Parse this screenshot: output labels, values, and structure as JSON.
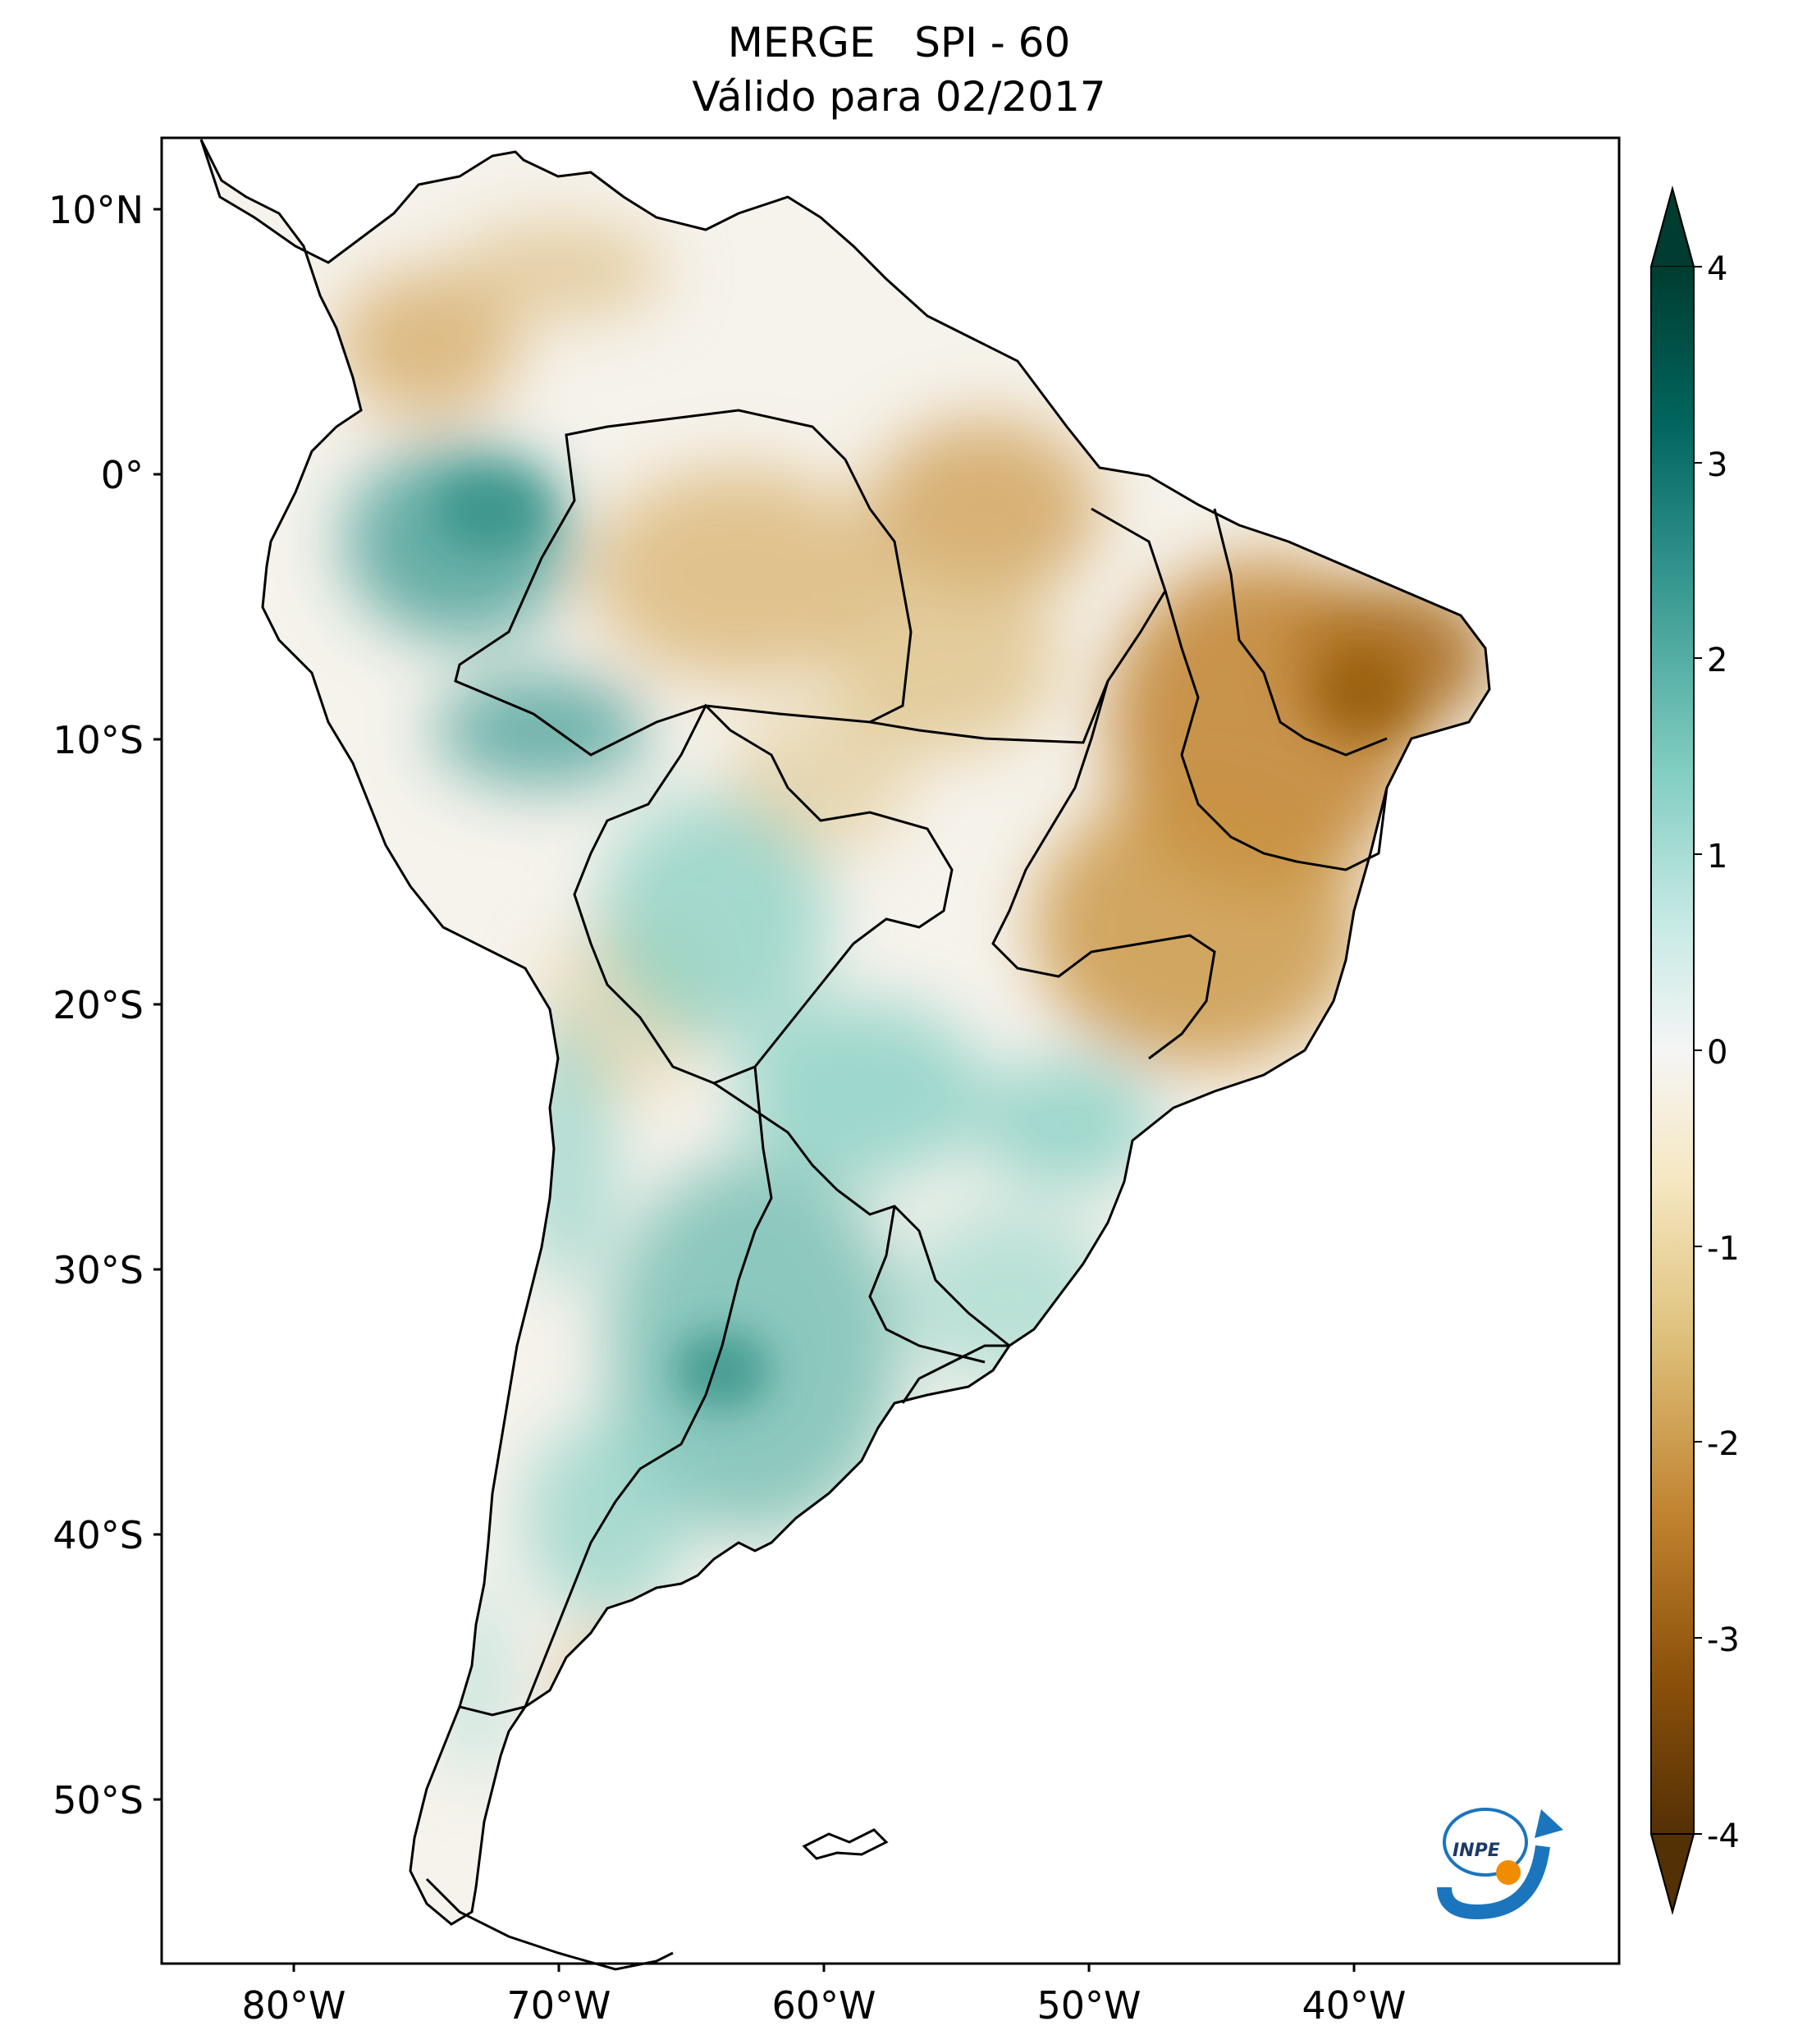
{
  "title": {
    "line1": "MERGE   SPI - 60",
    "line2": "Válido para 02/2017"
  },
  "map": {
    "lat_ticks": [
      "10°N",
      "0°",
      "10°S",
      "20°S",
      "30°S",
      "40°S",
      "50°S"
    ],
    "lon_ticks": [
      "80°W",
      "70°W",
      "60°W",
      "50°W",
      "40°W"
    ],
    "extent": {
      "lon": [
        -85,
        -30
      ],
      "lat": [
        -56,
        13
      ]
    },
    "variable": "SPI-60",
    "colormap": "BrBG"
  },
  "colorbar": {
    "ticks": [
      "4",
      "3",
      "2",
      "1",
      "0",
      "-1",
      "-2",
      "-3",
      "-4"
    ],
    "range": [
      -4,
      4
    ],
    "colors": {
      "dry_extreme": "#543005",
      "dry_strong": "#8c510a",
      "dry": "#bf812d",
      "dry_mild": "#dfc27d",
      "dry_slight": "#f6e8c3",
      "neutral": "#f5f5f5",
      "wet_slight": "#c7eae5",
      "wet_mild": "#80cdc1",
      "wet": "#35978f",
      "wet_strong": "#01665e",
      "wet_extreme": "#003c30"
    }
  },
  "logo": {
    "text": "INPE"
  }
}
